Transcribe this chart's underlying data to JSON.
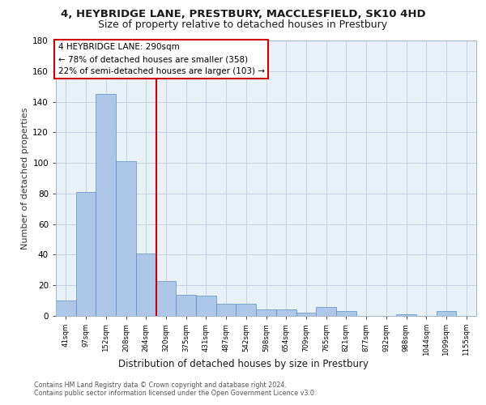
{
  "title1": "4, HEYBRIDGE LANE, PRESTBURY, MACCLESFIELD, SK10 4HD",
  "title2": "Size of property relative to detached houses in Prestbury",
  "xlabel": "Distribution of detached houses by size in Prestbury",
  "ylabel": "Number of detached properties",
  "categories": [
    "41sqm",
    "97sqm",
    "152sqm",
    "208sqm",
    "264sqm",
    "320sqm",
    "375sqm",
    "431sqm",
    "487sqm",
    "542sqm",
    "598sqm",
    "654sqm",
    "709sqm",
    "765sqm",
    "821sqm",
    "877sqm",
    "932sqm",
    "988sqm",
    "1044sqm",
    "1099sqm",
    "1155sqm"
  ],
  "values": [
    10,
    81,
    145,
    101,
    41,
    23,
    14,
    13,
    8,
    8,
    4,
    4,
    2,
    6,
    3,
    0,
    0,
    1,
    0,
    3,
    0
  ],
  "bar_color": "#aec6e8",
  "bar_edge_color": "#5a8fc0",
  "vline_pos": 4.5,
  "vline_color": "#cc0000",
  "annotation_line1": "4 HEYBRIDGE LANE: 290sqm",
  "annotation_line2": "← 78% of detached houses are smaller (358)",
  "annotation_line3": "22% of semi-detached houses are larger (103) →",
  "annotation_box_color": "#ffffff",
  "annotation_box_edge": "#cc0000",
  "ylim": [
    0,
    180
  ],
  "yticks": [
    0,
    20,
    40,
    60,
    80,
    100,
    120,
    140,
    160,
    180
  ],
  "footer1": "Contains HM Land Registry data © Crown copyright and database right 2024.",
  "footer2": "Contains public sector information licensed under the Open Government Licence v3.0.",
  "bg_color": "#e8f0f8",
  "fig_bg_color": "#ffffff",
  "title1_fontsize": 9.5,
  "title2_fontsize": 9.0,
  "ylabel_fontsize": 8.0,
  "xlabel_fontsize": 8.5,
  "tick_fontsize": 7.5,
  "annot_fontsize": 7.5
}
